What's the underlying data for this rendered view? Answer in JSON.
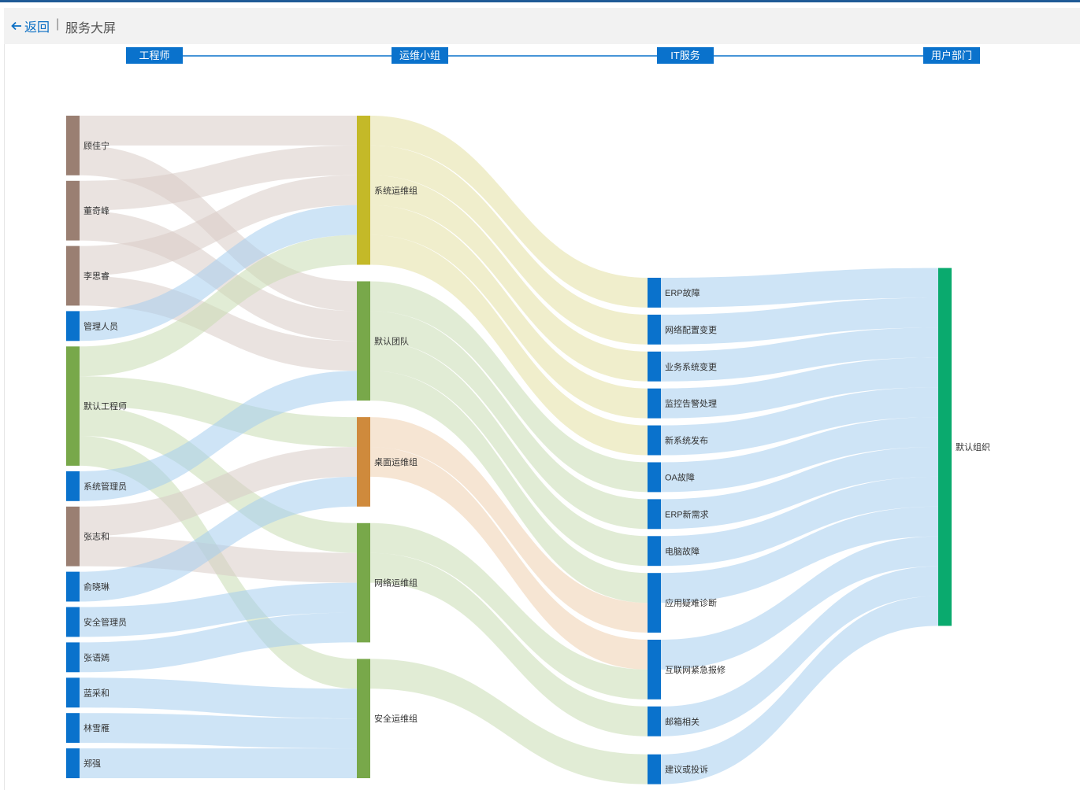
{
  "header": {
    "back_label": "返回",
    "separator": "|",
    "title": "服务大屏"
  },
  "chart_data": {
    "type": "sankey",
    "stages": [
      "工程师",
      "运维小组",
      "IT服务",
      "用户部门"
    ],
    "colors": {
      "brown": "#9a7f72",
      "blue": "#0a72cc",
      "green": "#78a84a",
      "olive": "#c4b928",
      "orange": "#cf8a3c",
      "teal": "#0aaa6e"
    },
    "nodes": [
      {
        "name": "顾佳宁",
        "stage": 0,
        "color": "brown"
      },
      {
        "name": "董奇峰",
        "stage": 0,
        "color": "brown"
      },
      {
        "name": "李思睿",
        "stage": 0,
        "color": "brown"
      },
      {
        "name": "管理人员",
        "stage": 0,
        "color": "blue"
      },
      {
        "name": "默认工程师",
        "stage": 0,
        "color": "green"
      },
      {
        "name": "系统管理员",
        "stage": 0,
        "color": "blue"
      },
      {
        "name": "张志和",
        "stage": 0,
        "color": "brown"
      },
      {
        "name": "俞晓琳",
        "stage": 0,
        "color": "blue"
      },
      {
        "name": "安全管理员",
        "stage": 0,
        "color": "blue"
      },
      {
        "name": "张语嫣",
        "stage": 0,
        "color": "blue"
      },
      {
        "name": "蓝采和",
        "stage": 0,
        "color": "blue"
      },
      {
        "name": "林雪雁",
        "stage": 0,
        "color": "blue"
      },
      {
        "name": "郑强",
        "stage": 0,
        "color": "blue"
      },
      {
        "name": "系统运维组",
        "stage": 1,
        "color": "olive"
      },
      {
        "name": "默认团队",
        "stage": 1,
        "color": "green"
      },
      {
        "name": "桌面运维组",
        "stage": 1,
        "color": "orange"
      },
      {
        "name": "网络运维组",
        "stage": 1,
        "color": "green"
      },
      {
        "name": "安全运维组",
        "stage": 1,
        "color": "green"
      },
      {
        "name": "ERP故障",
        "stage": 2,
        "color": "blue"
      },
      {
        "name": "网络配置变更",
        "stage": 2,
        "color": "blue"
      },
      {
        "name": "业务系统变更",
        "stage": 2,
        "color": "blue"
      },
      {
        "name": "监控告警处理",
        "stage": 2,
        "color": "blue"
      },
      {
        "name": "新系统发布",
        "stage": 2,
        "color": "blue"
      },
      {
        "name": "OA故障",
        "stage": 2,
        "color": "blue"
      },
      {
        "name": "ERP新需求",
        "stage": 2,
        "color": "blue"
      },
      {
        "name": "电脑故障",
        "stage": 2,
        "color": "blue"
      },
      {
        "name": "应用疑难诊断",
        "stage": 2,
        "color": "blue"
      },
      {
        "name": "互联网紧急报修",
        "stage": 2,
        "color": "blue"
      },
      {
        "name": "邮箱相关",
        "stage": 2,
        "color": "blue"
      },
      {
        "name": "建议或投诉",
        "stage": 2,
        "color": "blue"
      },
      {
        "name": "默认组织",
        "stage": 3,
        "color": "teal"
      }
    ],
    "links": [
      {
        "source": "顾佳宁",
        "target": "系统运维组",
        "value": 1
      },
      {
        "source": "顾佳宁",
        "target": "默认团队",
        "value": 1
      },
      {
        "source": "董奇峰",
        "target": "系统运维组",
        "value": 1
      },
      {
        "source": "董奇峰",
        "target": "默认团队",
        "value": 1
      },
      {
        "source": "李思睿",
        "target": "系统运维组",
        "value": 1
      },
      {
        "source": "李思睿",
        "target": "默认团队",
        "value": 1
      },
      {
        "source": "管理人员",
        "target": "系统运维组",
        "value": 1
      },
      {
        "source": "默认工程师",
        "target": "系统运维组",
        "value": 1
      },
      {
        "source": "默认工程师",
        "target": "桌面运维组",
        "value": 1
      },
      {
        "source": "默认工程师",
        "target": "网络运维组",
        "value": 1
      },
      {
        "source": "默认工程师",
        "target": "安全运维组",
        "value": 1
      },
      {
        "source": "系统管理员",
        "target": "默认团队",
        "value": 1
      },
      {
        "source": "张志和",
        "target": "桌面运维组",
        "value": 1
      },
      {
        "source": "张志和",
        "target": "网络运维组",
        "value": 1
      },
      {
        "source": "俞晓琳",
        "target": "桌面运维组",
        "value": 1
      },
      {
        "source": "安全管理员",
        "target": "网络运维组",
        "value": 1
      },
      {
        "source": "张语嫣",
        "target": "网络运维组",
        "value": 1
      },
      {
        "source": "蓝采和",
        "target": "安全运维组",
        "value": 1
      },
      {
        "source": "林雪雁",
        "target": "安全运维组",
        "value": 1
      },
      {
        "source": "郑强",
        "target": "安全运维组",
        "value": 1
      },
      {
        "source": "系统运维组",
        "target": "ERP故障",
        "value": 1
      },
      {
        "source": "系统运维组",
        "target": "网络配置变更",
        "value": 1
      },
      {
        "source": "系统运维组",
        "target": "业务系统变更",
        "value": 1
      },
      {
        "source": "系统运维组",
        "target": "监控告警处理",
        "value": 1
      },
      {
        "source": "系统运维组",
        "target": "新系统发布",
        "value": 1
      },
      {
        "source": "默认团队",
        "target": "OA故障",
        "value": 1
      },
      {
        "source": "默认团队",
        "target": "ERP新需求",
        "value": 1
      },
      {
        "source": "默认团队",
        "target": "电脑故障",
        "value": 1
      },
      {
        "source": "默认团队",
        "target": "应用疑难诊断",
        "value": 1
      },
      {
        "source": "桌面运维组",
        "target": "应用疑难诊断",
        "value": 1
      },
      {
        "source": "桌面运维组",
        "target": "互联网紧急报修",
        "value": 1
      },
      {
        "source": "网络运维组",
        "target": "互联网紧急报修",
        "value": 1
      },
      {
        "source": "网络运维组",
        "target": "邮箱相关",
        "value": 1
      },
      {
        "source": "安全运维组",
        "target": "建议或投诉",
        "value": 1
      },
      {
        "source": "ERP故障",
        "target": "默认组织",
        "value": 1
      },
      {
        "source": "网络配置变更",
        "target": "默认组织",
        "value": 1
      },
      {
        "source": "业务系统变更",
        "target": "默认组织",
        "value": 1
      },
      {
        "source": "监控告警处理",
        "target": "默认组织",
        "value": 1
      },
      {
        "source": "新系统发布",
        "target": "默认组织",
        "value": 1
      },
      {
        "source": "OA故障",
        "target": "默认组织",
        "value": 1
      },
      {
        "source": "ERP新需求",
        "target": "默认组织",
        "value": 1
      },
      {
        "source": "电脑故障",
        "target": "默认组织",
        "value": 1
      },
      {
        "source": "应用疑难诊断",
        "target": "默认组织",
        "value": 1
      },
      {
        "source": "互联网紧急报修",
        "target": "默认组织",
        "value": 1
      },
      {
        "source": "邮箱相关",
        "target": "默认组织",
        "value": 1
      },
      {
        "source": "建议或投诉",
        "target": "默认组织",
        "value": 1
      }
    ]
  }
}
